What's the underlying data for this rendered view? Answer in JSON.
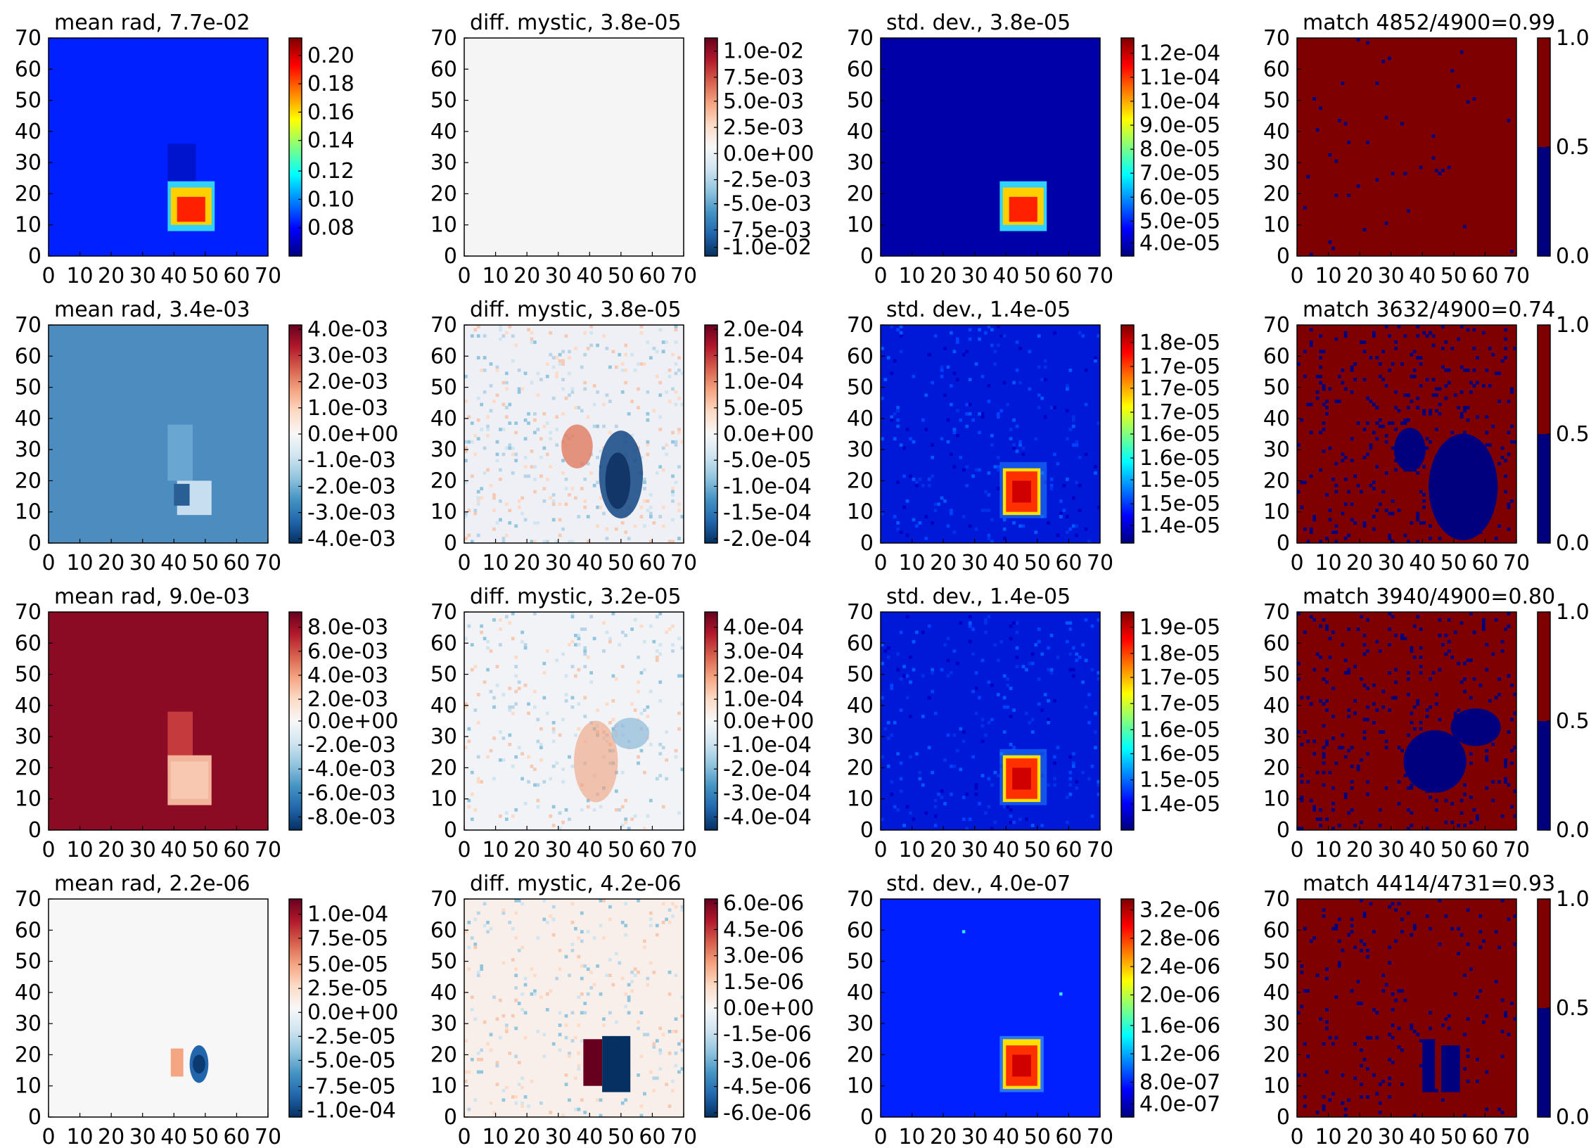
{
  "figure": {
    "axis_ticks": [
      "0",
      "10",
      "20",
      "30",
      "40",
      "50",
      "60",
      "70"
    ],
    "colormaps": {
      "jet": [
        "#00007f",
        "#0000ff",
        "#0080ff",
        "#00ffff",
        "#80ff80",
        "#ffff00",
        "#ff8000",
        "#ff0000",
        "#7f0000"
      ],
      "rdbu": [
        "#053061",
        "#2166ac",
        "#4393c3",
        "#92c5de",
        "#d1e5f0",
        "#f7f7f7",
        "#fddbc7",
        "#f4a582",
        "#d6604d",
        "#b2182b",
        "#67001f"
      ],
      "match": [
        "#00007f",
        "#7f0000"
      ]
    }
  },
  "chart_data": [
    {
      "type": "heatmap",
      "row": 0,
      "col": 0,
      "title": "mean rad, 7.7e-02",
      "cmap": "jet",
      "bg": "#0020ff",
      "xlim": [
        0,
        70
      ],
      "ylim": [
        0,
        70
      ],
      "colorbar_ticks": [
        "0.20",
        "0.18",
        "0.16",
        "0.14",
        "0.12",
        "0.10",
        "0.08"
      ],
      "colorbar_ticks_pos": [
        0.92,
        0.79,
        0.66,
        0.53,
        0.39,
        0.26,
        0.13
      ],
      "features": [
        {
          "kind": "rect",
          "x": [
            38,
            47
          ],
          "y": [
            16,
            36
          ],
          "color": "#0010c0",
          "opacity": 0.8
        },
        {
          "kind": "rect",
          "x": [
            38,
            53
          ],
          "y": [
            8,
            24
          ],
          "color": "#30d0ff"
        },
        {
          "kind": "rect",
          "x": [
            39,
            52
          ],
          "y": [
            10,
            22
          ],
          "color": "#ffd000"
        },
        {
          "kind": "rect",
          "x": [
            41,
            50
          ],
          "y": [
            11,
            19
          ],
          "color": "#ff2000"
        }
      ]
    },
    {
      "type": "heatmap",
      "row": 0,
      "col": 1,
      "title": "diff. mystic, 3.8e-05",
      "cmap": "rdbu",
      "bg": "#f5f5f5",
      "xlim": [
        0,
        70
      ],
      "ylim": [
        0,
        70
      ],
      "colorbar_ticks": [
        "1.0e-02",
        "7.5e-03",
        "5.0e-03",
        "2.5e-03",
        "0.0e+00",
        "-2.5e-03",
        "-5.0e-03",
        "-7.5e-03",
        "-1.0e-02"
      ],
      "colorbar_ticks_pos": [
        0.94,
        0.82,
        0.71,
        0.59,
        0.47,
        0.35,
        0.24,
        0.12,
        0.04
      ],
      "features": []
    },
    {
      "type": "heatmap",
      "row": 0,
      "col": 2,
      "title": "std. dev., 3.8e-05",
      "cmap": "jet",
      "bg": "#0000a8",
      "xlim": [
        0,
        70
      ],
      "ylim": [
        0,
        70
      ],
      "colorbar_ticks": [
        "1.2e-04",
        "1.1e-04",
        "1.0e-04",
        "9.0e-05",
        "8.0e-05",
        "7.0e-05",
        "6.0e-05",
        "5.0e-05",
        "4.0e-05"
      ],
      "colorbar_ticks_pos": [
        0.93,
        0.82,
        0.71,
        0.6,
        0.49,
        0.38,
        0.27,
        0.16,
        0.06
      ],
      "features": [
        {
          "kind": "rect",
          "x": [
            38,
            53
          ],
          "y": [
            8,
            24
          ],
          "color": "#30d0ff"
        },
        {
          "kind": "rect",
          "x": [
            39,
            52
          ],
          "y": [
            10,
            22
          ],
          "color": "#ffd000"
        },
        {
          "kind": "rect",
          "x": [
            41,
            50
          ],
          "y": [
            11,
            19
          ],
          "color": "#ff2000"
        }
      ]
    },
    {
      "type": "heatmap",
      "row": 0,
      "col": 3,
      "title": "match 4852/4900=0.99",
      "cmap": "match",
      "bg": "#7f0000",
      "xlim": [
        0,
        70
      ],
      "ylim": [
        0,
        70
      ],
      "colorbar_ticks": [
        "1.0",
        "0.5",
        "0.0"
      ],
      "colorbar_ticks_pos": [
        1.0,
        0.5,
        0.0
      ],
      "features": [
        {
          "kind": "speckle",
          "color": "#00007f",
          "count": 48,
          "seed": 11
        }
      ]
    },
    {
      "type": "heatmap",
      "row": 1,
      "col": 0,
      "title": "mean rad, 3.4e-03",
      "cmap": "rdbu",
      "bg": "#4d8cbf",
      "xlim": [
        0,
        70
      ],
      "ylim": [
        0,
        70
      ],
      "colorbar_ticks": [
        "4.0e-03",
        "3.0e-03",
        "2.0e-03",
        "1.0e-03",
        "0.0e+00",
        "-1.0e-03",
        "-2.0e-03",
        "-3.0e-03",
        "-4.0e-03"
      ],
      "colorbar_ticks_pos": [
        0.98,
        0.86,
        0.74,
        0.62,
        0.5,
        0.38,
        0.26,
        0.14,
        0.02
      ],
      "features": [
        {
          "kind": "rect",
          "x": [
            38,
            46
          ],
          "y": [
            20,
            38
          ],
          "color": "#6aa6d2"
        },
        {
          "kind": "rect",
          "x": [
            41,
            52
          ],
          "y": [
            9,
            20
          ],
          "color": "#c7def0"
        },
        {
          "kind": "rect",
          "x": [
            40,
            45
          ],
          "y": [
            12,
            19
          ],
          "color": "#2a5f96"
        }
      ]
    },
    {
      "type": "heatmap",
      "row": 1,
      "col": 1,
      "title": "diff. mystic, 3.8e-05",
      "cmap": "rdbu",
      "bg": "#eef0f5",
      "xlim": [
        0,
        70
      ],
      "ylim": [
        0,
        70
      ],
      "colorbar_ticks": [
        "2.0e-04",
        "1.5e-04",
        "1.0e-04",
        "5.0e-05",
        "0.0e+00",
        "-5.0e-05",
        "-1.0e-04",
        "-1.5e-04",
        "-2.0e-04"
      ],
      "colorbar_ticks_pos": [
        0.98,
        0.86,
        0.74,
        0.62,
        0.5,
        0.38,
        0.26,
        0.14,
        0.02
      ],
      "features": [
        {
          "kind": "noise",
          "count": 420,
          "seed": 3
        },
        {
          "kind": "ellipse",
          "cx": 36,
          "cy": 31,
          "rx": 5,
          "ry": 7,
          "color": "#e07a5f",
          "opacity": 0.8
        },
        {
          "kind": "ellipse",
          "cx": 50,
          "cy": 22,
          "rx": 7,
          "ry": 14,
          "color": "#1d4f8a",
          "opacity": 0.9
        },
        {
          "kind": "ellipse",
          "cx": 49,
          "cy": 20,
          "rx": 4,
          "ry": 9,
          "color": "#0b2c5c",
          "opacity": 0.8
        }
      ]
    },
    {
      "type": "heatmap",
      "row": 1,
      "col": 2,
      "title": "std. dev., 1.4e-05",
      "cmap": "jet",
      "bg": "#0018d8",
      "xlim": [
        0,
        70
      ],
      "ylim": [
        0,
        70
      ],
      "colorbar_ticks": [
        "1.8e-05",
        "1.7e-05",
        "1.7e-05",
        "1.7e-05",
        "1.6e-05",
        "1.6e-05",
        "1.5e-05",
        "1.5e-05",
        "1.4e-05"
      ],
      "colorbar_ticks_pos": [
        0.92,
        0.81,
        0.71,
        0.6,
        0.5,
        0.39,
        0.29,
        0.18,
        0.08
      ],
      "features": [
        {
          "kind": "noise_jet",
          "count": 260,
          "seed": 5
        },
        {
          "kind": "rect",
          "x": [
            38,
            53
          ],
          "y": [
            8,
            26
          ],
          "color": "#2090ff",
          "opacity": 0.5
        },
        {
          "kind": "rect",
          "x": [
            39,
            51
          ],
          "y": [
            9,
            24
          ],
          "color": "#ffe000"
        },
        {
          "kind": "rect",
          "x": [
            40,
            50
          ],
          "y": [
            10,
            23
          ],
          "color": "#ff3000"
        },
        {
          "kind": "rect",
          "x": [
            42,
            48
          ],
          "y": [
            13,
            20
          ],
          "color": "#d00000"
        }
      ]
    },
    {
      "type": "heatmap",
      "row": 1,
      "col": 3,
      "title": "match 3632/4900=0.74",
      "cmap": "match",
      "bg": "#7f0000",
      "xlim": [
        0,
        70
      ],
      "ylim": [
        0,
        70
      ],
      "colorbar_ticks": [
        "1.0",
        "0.5",
        "0.0"
      ],
      "colorbar_ticks_pos": [
        1.0,
        0.5,
        0.0
      ],
      "features": [
        {
          "kind": "speckle",
          "color": "#00007f",
          "count": 380,
          "seed": 21
        },
        {
          "kind": "ellipse",
          "cx": 53,
          "cy": 18,
          "rx": 11,
          "ry": 17,
          "color": "#00007f"
        },
        {
          "kind": "ellipse",
          "cx": 36,
          "cy": 30,
          "rx": 5,
          "ry": 7,
          "color": "#00007f"
        }
      ]
    },
    {
      "type": "heatmap",
      "row": 2,
      "col": 0,
      "title": "mean rad, 9.0e-03",
      "cmap": "rdbu",
      "bg": "#8b0a24",
      "xlim": [
        0,
        70
      ],
      "ylim": [
        0,
        70
      ],
      "colorbar_ticks": [
        "8.0e-03",
        "6.0e-03",
        "4.0e-03",
        "2.0e-03",
        "0.0e+00",
        "-2.0e-03",
        "-4.0e-03",
        "-6.0e-03",
        "-8.0e-03"
      ],
      "colorbar_ticks_pos": [
        0.93,
        0.82,
        0.71,
        0.6,
        0.5,
        0.39,
        0.28,
        0.17,
        0.06
      ],
      "features": [
        {
          "kind": "rect",
          "x": [
            38,
            46
          ],
          "y": [
            20,
            38
          ],
          "color": "#c43a3d"
        },
        {
          "kind": "rect",
          "x": [
            38,
            52
          ],
          "y": [
            8,
            24
          ],
          "color": "#f2b49a"
        },
        {
          "kind": "rect",
          "x": [
            39,
            51
          ],
          "y": [
            10,
            22
          ],
          "color": "#f8c9b0"
        }
      ]
    },
    {
      "type": "heatmap",
      "row": 2,
      "col": 1,
      "title": "diff. mystic, 3.2e-05",
      "cmap": "rdbu",
      "bg": "#f1f3f6",
      "xlim": [
        0,
        70
      ],
      "ylim": [
        0,
        70
      ],
      "colorbar_ticks": [
        "4.0e-04",
        "3.0e-04",
        "2.0e-04",
        "1.0e-04",
        "0.0e+00",
        "-1.0e-04",
        "-2.0e-04",
        "-3.0e-04",
        "-4.0e-04"
      ],
      "colorbar_ticks_pos": [
        0.93,
        0.82,
        0.71,
        0.6,
        0.5,
        0.39,
        0.28,
        0.17,
        0.06
      ],
      "features": [
        {
          "kind": "noise",
          "count": 300,
          "seed": 9
        },
        {
          "kind": "ellipse",
          "cx": 42,
          "cy": 22,
          "rx": 7,
          "ry": 13,
          "color": "#f0a07c",
          "opacity": 0.6
        },
        {
          "kind": "ellipse",
          "cx": 53,
          "cy": 31,
          "rx": 6,
          "ry": 5,
          "color": "#8db9dc",
          "opacity": 0.7
        }
      ]
    },
    {
      "type": "heatmap",
      "row": 2,
      "col": 2,
      "title": "std. dev., 1.4e-05",
      "cmap": "jet",
      "bg": "#0018d8",
      "xlim": [
        0,
        70
      ],
      "ylim": [
        0,
        70
      ],
      "colorbar_ticks": [
        "1.9e-05",
        "1.8e-05",
        "1.7e-05",
        "1.7e-05",
        "1.6e-05",
        "1.6e-05",
        "1.5e-05",
        "1.4e-05"
      ],
      "colorbar_ticks_pos": [
        0.93,
        0.81,
        0.7,
        0.58,
        0.46,
        0.35,
        0.23,
        0.12
      ],
      "features": [
        {
          "kind": "noise_jet",
          "count": 260,
          "seed": 15
        },
        {
          "kind": "rect",
          "x": [
            38,
            53
          ],
          "y": [
            8,
            26
          ],
          "color": "#2090ff",
          "opacity": 0.5
        },
        {
          "kind": "rect",
          "x": [
            39,
            51
          ],
          "y": [
            9,
            24
          ],
          "color": "#ffe000"
        },
        {
          "kind": "rect",
          "x": [
            40,
            50
          ],
          "y": [
            10,
            23
          ],
          "color": "#ff3000"
        },
        {
          "kind": "rect",
          "x": [
            42,
            48
          ],
          "y": [
            13,
            20
          ],
          "color": "#d00000"
        }
      ]
    },
    {
      "type": "heatmap",
      "row": 2,
      "col": 3,
      "title": "match 3940/4900=0.80",
      "cmap": "match",
      "bg": "#7f0000",
      "xlim": [
        0,
        70
      ],
      "ylim": [
        0,
        70
      ],
      "colorbar_ticks": [
        "1.0",
        "0.5",
        "0.0"
      ],
      "colorbar_ticks_pos": [
        1.0,
        0.5,
        0.0
      ],
      "features": [
        {
          "kind": "speckle",
          "color": "#00007f",
          "count": 320,
          "seed": 31
        },
        {
          "kind": "ellipse",
          "cx": 44,
          "cy": 22,
          "rx": 10,
          "ry": 10,
          "color": "#00007f"
        },
        {
          "kind": "ellipse",
          "cx": 57,
          "cy": 33,
          "rx": 8,
          "ry": 6,
          "color": "#00007f"
        }
      ]
    },
    {
      "type": "heatmap",
      "row": 3,
      "col": 0,
      "title": "mean rad, 2.2e-06",
      "cmap": "rdbu",
      "bg": "#f7f7f7",
      "xlim": [
        0,
        70
      ],
      "ylim": [
        0,
        70
      ],
      "colorbar_ticks": [
        "1.0e-04",
        "7.5e-05",
        "5.0e-05",
        "2.5e-05",
        "0.0e+00",
        "-2.5e-05",
        "-5.0e-05",
        "-7.5e-05",
        "-1.0e-04"
      ],
      "colorbar_ticks_pos": [
        0.93,
        0.82,
        0.7,
        0.59,
        0.48,
        0.37,
        0.26,
        0.14,
        0.03
      ],
      "features": [
        {
          "kind": "rect",
          "x": [
            39,
            43
          ],
          "y": [
            13,
            22
          ],
          "color": "#f4a582"
        },
        {
          "kind": "ellipse",
          "cx": 48,
          "cy": 17,
          "rx": 3,
          "ry": 6,
          "color": "#2166ac"
        },
        {
          "kind": "ellipse",
          "cx": 48,
          "cy": 17,
          "rx": 2,
          "ry": 3,
          "color": "#0a3a70"
        }
      ]
    },
    {
      "type": "heatmap",
      "row": 3,
      "col": 1,
      "title": "diff. mystic, 4.2e-06",
      "cmap": "rdbu",
      "bg": "#f8efea",
      "xlim": [
        0,
        70
      ],
      "ylim": [
        0,
        70
      ],
      "colorbar_ticks": [
        "6.0e-06",
        "4.5e-06",
        "3.0e-06",
        "1.5e-06",
        "0.0e+00",
        "-1.5e-06",
        "-3.0e-06",
        "-4.5e-06",
        "-6.0e-06"
      ],
      "colorbar_ticks_pos": [
        0.98,
        0.86,
        0.74,
        0.62,
        0.5,
        0.38,
        0.26,
        0.14,
        0.02
      ],
      "features": [
        {
          "kind": "noise",
          "count": 300,
          "seed": 41
        },
        {
          "kind": "rect",
          "x": [
            38,
            44
          ],
          "y": [
            10,
            25
          ],
          "color": "#67001f"
        },
        {
          "kind": "rect",
          "x": [
            44,
            53
          ],
          "y": [
            8,
            26
          ],
          "color": "#053061"
        }
      ]
    },
    {
      "type": "heatmap",
      "row": 3,
      "col": 2,
      "title": "std. dev., 4.0e-07",
      "cmap": "jet",
      "bg": "#0020ff",
      "xlim": [
        0,
        70
      ],
      "ylim": [
        0,
        70
      ],
      "colorbar_ticks": [
        "3.2e-06",
        "2.8e-06",
        "2.4e-06",
        "2.0e-06",
        "1.6e-06",
        "1.2e-06",
        "8.0e-07",
        "4.0e-07"
      ],
      "colorbar_ticks_pos": [
        0.95,
        0.82,
        0.69,
        0.56,
        0.42,
        0.29,
        0.16,
        0.06
      ],
      "features": [
        {
          "kind": "rect",
          "x": [
            38,
            52
          ],
          "y": [
            8,
            26
          ],
          "color": "#40b0ff",
          "opacity": 0.6
        },
        {
          "kind": "rect",
          "x": [
            39,
            51
          ],
          "y": [
            9,
            25
          ],
          "color": "#ffe000"
        },
        {
          "kind": "rect",
          "x": [
            40,
            50
          ],
          "y": [
            10,
            23
          ],
          "color": "#ff3000"
        },
        {
          "kind": "rect",
          "x": [
            42,
            48
          ],
          "y": [
            13,
            20
          ],
          "color": "#d00000"
        },
        {
          "kind": "dot",
          "x": 57,
          "y": 39,
          "color": "#40e0ff"
        },
        {
          "kind": "dot",
          "x": 26,
          "y": 59,
          "color": "#40e0ff"
        }
      ]
    },
    {
      "type": "heatmap",
      "row": 3,
      "col": 3,
      "title": "match 4414/4731=0.93",
      "cmap": "match",
      "bg": "#7f0000",
      "xlim": [
        0,
        70
      ],
      "ylim": [
        0,
        70
      ],
      "colorbar_ticks": [
        "1.0",
        "0.5",
        "0.0"
      ],
      "colorbar_ticks_pos": [
        1.0,
        0.5,
        0.0
      ],
      "features": [
        {
          "kind": "speckle",
          "color": "#00007f",
          "count": 200,
          "seed": 51
        },
        {
          "kind": "rect",
          "x": [
            40,
            44
          ],
          "y": [
            8,
            25
          ],
          "color": "#00007f"
        },
        {
          "kind": "rect",
          "x": [
            46,
            52
          ],
          "y": [
            8,
            23
          ],
          "color": "#00007f"
        }
      ]
    }
  ]
}
